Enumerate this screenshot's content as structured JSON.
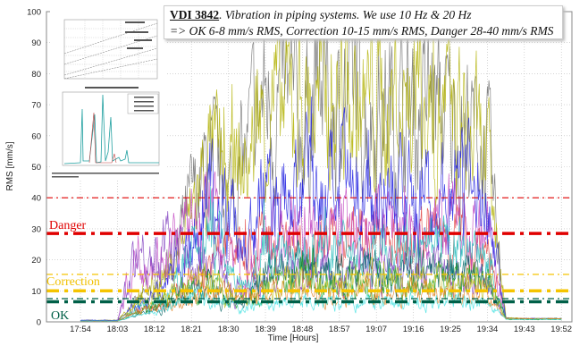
{
  "chart_data": {
    "type": "line",
    "title_bold": "VDI 3842",
    "title_line1": ". Vibration in piping systems. We use 10 Hz & 20 Hz",
    "title_line2": "=> OK 6-8 mm/s RMS, Correction 10-15 mm/s RMS, Danger 28-40  mm/s RMS",
    "xlabel": "Time [Hours]",
    "ylabel": "RMS [mm/s]",
    "ylim": [
      0,
      100
    ],
    "yticks": [
      0,
      10,
      20,
      30,
      40,
      50,
      60,
      70,
      80,
      90,
      100
    ],
    "xticks": [
      "17:54",
      "18:03",
      "18:12",
      "18:21",
      "18:30",
      "18:39",
      "18:48",
      "18:57",
      "19:07",
      "19:16",
      "19:25",
      "19:34",
      "19:43",
      "19:52"
    ],
    "grid": true,
    "x_note": "x values are in tick-index units (0 = 17:54, 13 = 19:52)",
    "x": [
      0,
      0.5,
      1,
      1.5,
      2,
      2.5,
      3,
      3.5,
      4,
      4.5,
      5,
      5.5,
      6,
      6.5,
      7,
      7.5,
      8,
      8.5,
      9,
      9.5,
      10,
      10.5,
      11,
      11.5,
      12,
      12.5,
      13
    ],
    "series": [
      {
        "name": "gray",
        "color": "#707070",
        "values": [
          0.5,
          0.5,
          0.5,
          6,
          10,
          20,
          38,
          50,
          40,
          55,
          72,
          70,
          65,
          75,
          70,
          72,
          68,
          70,
          66,
          72,
          64,
          62,
          55,
          1.2,
          1,
          1,
          1
        ]
      },
      {
        "name": "olive",
        "color": "#b0b000",
        "values": [
          0.5,
          0.5,
          0.5,
          8,
          12,
          18,
          35,
          55,
          45,
          50,
          70,
          68,
          72,
          70,
          74,
          66,
          72,
          70,
          74,
          68,
          66,
          60,
          50,
          1.5,
          1,
          1,
          1
        ]
      },
      {
        "name": "red",
        "color": "#e04040",
        "values": [
          0.3,
          0.3,
          0.3,
          3,
          5,
          8,
          14,
          18,
          25,
          22,
          28,
          26,
          28,
          24,
          26,
          28,
          25,
          24,
          26,
          28,
          30,
          26,
          24,
          1,
          1,
          1,
          1
        ]
      },
      {
        "name": "magenta",
        "color": "#c040c0",
        "values": [
          0.3,
          0.3,
          0.3,
          22,
          20,
          25,
          30,
          38,
          20,
          15,
          30,
          28,
          32,
          26,
          30,
          28,
          30,
          32,
          28,
          30,
          34,
          32,
          30,
          1,
          1,
          1,
          1
        ]
      },
      {
        "name": "blue",
        "color": "#2020e0",
        "values": [
          0.5,
          0.5,
          0.5,
          5,
          8,
          15,
          28,
          45,
          35,
          25,
          42,
          38,
          45,
          40,
          44,
          38,
          42,
          45,
          40,
          38,
          42,
          44,
          40,
          1,
          1,
          1,
          1
        ]
      },
      {
        "name": "cyan",
        "color": "#20b8b8",
        "values": [
          0.3,
          0.3,
          0.3,
          4,
          6,
          10,
          22,
          30,
          18,
          10,
          24,
          22,
          20,
          24,
          22,
          20,
          22,
          24,
          20,
          22,
          24,
          20,
          18,
          1,
          0.8,
          0.8,
          0.8
        ]
      },
      {
        "name": "purple",
        "color": "#8040c0",
        "values": [
          0.3,
          0.3,
          0.3,
          24,
          20,
          27,
          18,
          20,
          12,
          10,
          16,
          15,
          17,
          16,
          15,
          17,
          16,
          15,
          17,
          16,
          15,
          14,
          13,
          1,
          1,
          1,
          1
        ]
      },
      {
        "name": "dark-teal",
        "color": "#006060",
        "values": [
          0.3,
          0.3,
          0.3,
          2,
          4,
          6,
          10,
          12,
          6,
          5,
          18,
          16,
          18,
          17,
          16,
          18,
          17,
          16,
          18,
          17,
          16,
          15,
          14,
          1,
          1,
          1,
          1
        ]
      },
      {
        "name": "green",
        "color": "#20a020",
        "values": [
          0.3,
          0.3,
          0.3,
          3,
          5,
          7,
          12,
          14,
          8,
          6,
          14,
          13,
          15,
          14,
          12,
          15,
          13,
          14,
          12,
          15,
          13,
          14,
          12,
          0.8,
          0.8,
          0.8,
          0.8
        ]
      },
      {
        "name": "yellow-green",
        "color": "#c0c020",
        "values": [
          0.3,
          0.3,
          0.3,
          5,
          7,
          9,
          12,
          14,
          10,
          7,
          13,
          12,
          14,
          13,
          12,
          14,
          13,
          12,
          14,
          13,
          12,
          13,
          12,
          1,
          1,
          1,
          1
        ]
      },
      {
        "name": "orange",
        "color": "#e08020",
        "values": [
          0.3,
          0.3,
          0.3,
          3,
          4,
          6,
          9,
          10,
          9,
          8,
          10,
          9,
          10,
          9,
          10,
          9,
          10,
          9,
          10,
          9,
          10,
          9,
          9,
          1,
          1,
          1,
          1
        ]
      },
      {
        "name": "light-cyan",
        "color": "#40e0e0",
        "values": [
          0.3,
          0.3,
          0.3,
          2,
          3,
          5,
          7,
          8,
          6,
          5,
          7,
          6,
          7,
          6,
          7,
          6,
          7,
          6,
          7,
          6,
          7,
          6,
          6,
          0.8,
          0.8,
          0.8,
          0.8
        ]
      }
    ],
    "thresholds": [
      {
        "name": "danger-upper",
        "value": 40,
        "color": "#e00000",
        "style": "thin"
      },
      {
        "name": "danger",
        "value": 28.5,
        "color": "#e00000",
        "style": "thick"
      },
      {
        "name": "correction-upper",
        "value": 15.3,
        "color": "#f5c400",
        "style": "thin"
      },
      {
        "name": "correction",
        "value": 10,
        "color": "#f5c400",
        "style": "thick"
      },
      {
        "name": "ok-upper",
        "value": 7.5,
        "color": "#006048",
        "style": "thin"
      },
      {
        "name": "ok",
        "value": 6.5,
        "color": "#006048",
        "style": "thick"
      }
    ],
    "annotations": {
      "danger": "Danger",
      "correction": "Correction",
      "ok": "OK"
    }
  }
}
